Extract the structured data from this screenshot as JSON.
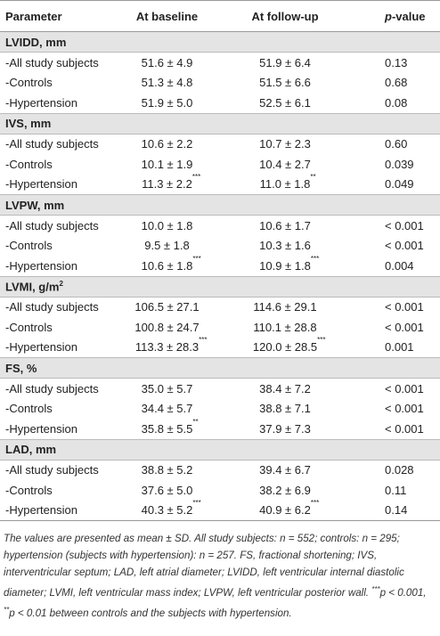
{
  "header": [
    "Parameter",
    "At baseline",
    "At follow-up",
    {
      "italic": "p",
      "text": "-value"
    }
  ],
  "sections": [
    {
      "title": "LVIDD, mm",
      "rows": [
        [
          "-All study subjects",
          "51.6 ± 4.9",
          "51.9 ± 6.4",
          "0.13"
        ],
        [
          "-Controls",
          "51.3 ± 4.8",
          "51.5 ± 6.6",
          "0.68"
        ],
        [
          "-Hypertension",
          "51.9 ± 5.0",
          "52.5 ± 6.1",
          "0.08"
        ]
      ]
    },
    {
      "title": "IVS, mm",
      "rows": [
        [
          "-All study subjects",
          "10.6 ± 2.2",
          "10.7 ± 2.3",
          "0.60"
        ],
        [
          "-Controls",
          "10.1 ± 1.9",
          "10.4 ± 2.7",
          "0.039"
        ],
        [
          "-Hypertension",
          {
            "text": "11.3 ± 2.2",
            "sup": "***"
          },
          {
            "text": "11.0 ± 1.8",
            "sup": "**"
          },
          "0.049"
        ]
      ]
    },
    {
      "title": "LVPW, mm",
      "rows": [
        [
          "-All study subjects",
          "10.0 ± 1.8",
          "10.6 ± 1.7",
          "< 0.001"
        ],
        [
          "-Controls",
          "9.5 ± 1.8",
          "10.3 ± 1.6",
          "< 0.001"
        ],
        [
          "-Hypertension",
          {
            "text": "10.6 ± 1.8",
            "sup": "***"
          },
          {
            "text": "10.9 ± 1.8",
            "sup": "***"
          },
          "0.004"
        ]
      ]
    },
    {
      "title": "LVMI, g/m",
      "sup": "2",
      "rows": [
        [
          "-All study subjects",
          "106.5 ± 27.1",
          "114.6 ± 29.1",
          "< 0.001"
        ],
        [
          "-Controls",
          "100.8 ± 24.7",
          "110.1 ± 28.8",
          "< 0.001"
        ],
        [
          "-Hypertension",
          {
            "text": "113.3 ± 28.3",
            "sup": "***"
          },
          {
            "text": "120.0 ± 28.5",
            "sup": "***"
          },
          "0.001"
        ]
      ]
    },
    {
      "title": "FS, %",
      "rows": [
        [
          "-All study subjects",
          "35.0 ± 5.7",
          "38.4 ± 7.2",
          "< 0.001"
        ],
        [
          "-Controls",
          "34.4 ± 5.7",
          "38.8 ± 7.1",
          "< 0.001"
        ],
        [
          "-Hypertension",
          {
            "text": "35.8 ± 5.5",
            "sup": "**"
          },
          "37.9 ± 7.3",
          "< 0.001"
        ]
      ]
    },
    {
      "title": "LAD, mm",
      "rows": [
        [
          "-All study subjects",
          "38.8 ± 5.2",
          "39.4 ± 6.7",
          "0.028"
        ],
        [
          "-Controls",
          "37.6 ± 5.0",
          "38.2 ± 6.9",
          "0.11"
        ],
        [
          "-Hypertension",
          {
            "text": "40.3 ± 5.2",
            "sup": "***"
          },
          {
            "text": "40.9 ± 6.2",
            "sup": "***"
          },
          "0.14"
        ]
      ]
    }
  ],
  "footnote": {
    "text": "The values are presented as mean ± SD. All study subjects: n = 552; controls: n = 295; hypertension (subjects with hypertension): n = 257. FS, fractional shortening; IVS, interventricular septum; LAD, left atrial diameter; LVIDD, left ventricular internal diastolic diameter; LVMI, left ventricular mass index; LVPW, left ventricular posterior wall.",
    "notes": [
      {
        "sup": "***",
        "text": "p < 0.001,"
      },
      {
        "sup": "**",
        "text": "p < 0.01 between controls and the subjects with hypertension."
      }
    ]
  }
}
